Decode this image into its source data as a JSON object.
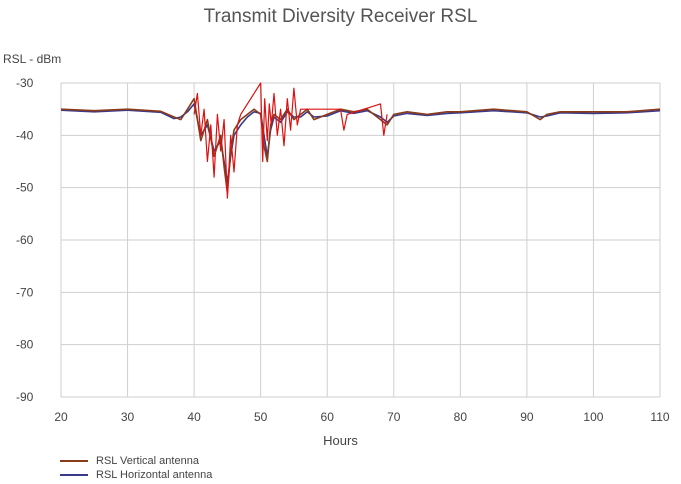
{
  "chart_data": {
    "type": "line",
    "title": "Transmit Diversity Receiver RSL",
    "ylabel": "RSL - dBm",
    "xlabel": "Hours",
    "xlim": [
      20,
      110
    ],
    "ylim": [
      -90,
      -30
    ],
    "xticks": [
      20,
      30,
      40,
      50,
      60,
      70,
      80,
      90,
      100,
      110
    ],
    "yticks": [
      -30,
      -40,
      -50,
      -60,
      -70,
      -80,
      -90
    ],
    "grid": true,
    "legend_position": "bottom-left",
    "series": [
      {
        "name": "RSL Vertical antenna",
        "color": "#8B3A1A",
        "x": [
          20,
          25,
          30,
          35,
          37,
          38,
          39,
          40,
          41,
          42,
          43,
          44,
          44.5,
          45,
          45.5,
          46,
          47,
          48,
          49,
          50,
          50.5,
          51,
          51.5,
          52,
          53,
          54,
          55,
          56,
          57,
          58,
          60,
          62,
          64,
          66,
          68,
          69,
          70,
          72,
          75,
          78,
          80,
          85,
          90,
          92,
          93,
          95,
          100,
          105,
          110
        ],
        "y": [
          -35,
          -35.3,
          -35,
          -35.4,
          -36.5,
          -37,
          -35,
          -33,
          -41,
          -37,
          -44,
          -40,
          -46,
          -51,
          -43,
          -39,
          -37,
          -36,
          -35,
          -36,
          -42,
          -45,
          -38,
          -36,
          -37,
          -35,
          -37,
          -36,
          -35,
          -37,
          -36,
          -35,
          -35.5,
          -35,
          -37,
          -38,
          -36,
          -35.5,
          -36,
          -35.5,
          -35.5,
          -35,
          -35.5,
          -37,
          -36,
          -35.5,
          -35.5,
          -35.5,
          -35
        ]
      },
      {
        "name": "RSL Horizontal antenna",
        "color": "#3A3A8C",
        "x": [
          20,
          25,
          30,
          35,
          37,
          38,
          39,
          40,
          41,
          42,
          43,
          44,
          44.5,
          45,
          45.5,
          46,
          47,
          48,
          49,
          50,
          50.5,
          51,
          51.5,
          52,
          53,
          54,
          55,
          56,
          57,
          58,
          60,
          62,
          64,
          66,
          68,
          69,
          70,
          72,
          75,
          78,
          80,
          85,
          90,
          92,
          93,
          95,
          100,
          105,
          110
        ],
        "y": [
          -35.2,
          -35.5,
          -35.2,
          -35.6,
          -36.8,
          -36.5,
          -35.5,
          -34,
          -40,
          -38,
          -43,
          -41,
          -45,
          -49,
          -44,
          -40,
          -38,
          -36.5,
          -35.5,
          -35.8,
          -40,
          -44,
          -39,
          -36.5,
          -37.5,
          -35.5,
          -36.5,
          -36.5,
          -35.5,
          -36.5,
          -36.3,
          -35.3,
          -35.8,
          -35.3,
          -36.5,
          -37.5,
          -36.3,
          -35.8,
          -36.2,
          -35.8,
          -35.7,
          -35.3,
          -35.7,
          -36.5,
          -36.3,
          -35.7,
          -35.8,
          -35.7,
          -35.3
        ]
      },
      {
        "name": "",
        "color": "#DD1111",
        "x": [
          40,
          40.5,
          41,
          41.5,
          42,
          42.5,
          43,
          43.5,
          44,
          44.5,
          45,
          45.5,
          46,
          46.5,
          47,
          50,
          50.3,
          50.6,
          51,
          51.3,
          51.6,
          52,
          52.5,
          53,
          53.5,
          54,
          54.5,
          55,
          55.5,
          56,
          62,
          62.5,
          63,
          68,
          68.5,
          69
        ],
        "y": [
          -36,
          -32,
          -40,
          -35,
          -45,
          -38,
          -48,
          -36,
          -43,
          -37,
          -52,
          -40,
          -47,
          -38,
          -36,
          -30,
          -45,
          -33,
          -41,
          -34,
          -38,
          -32,
          -40,
          -35,
          -42,
          -33,
          -39,
          -31,
          -38,
          -35,
          -35,
          -39,
          -36,
          -34,
          -40,
          -36
        ]
      }
    ]
  }
}
